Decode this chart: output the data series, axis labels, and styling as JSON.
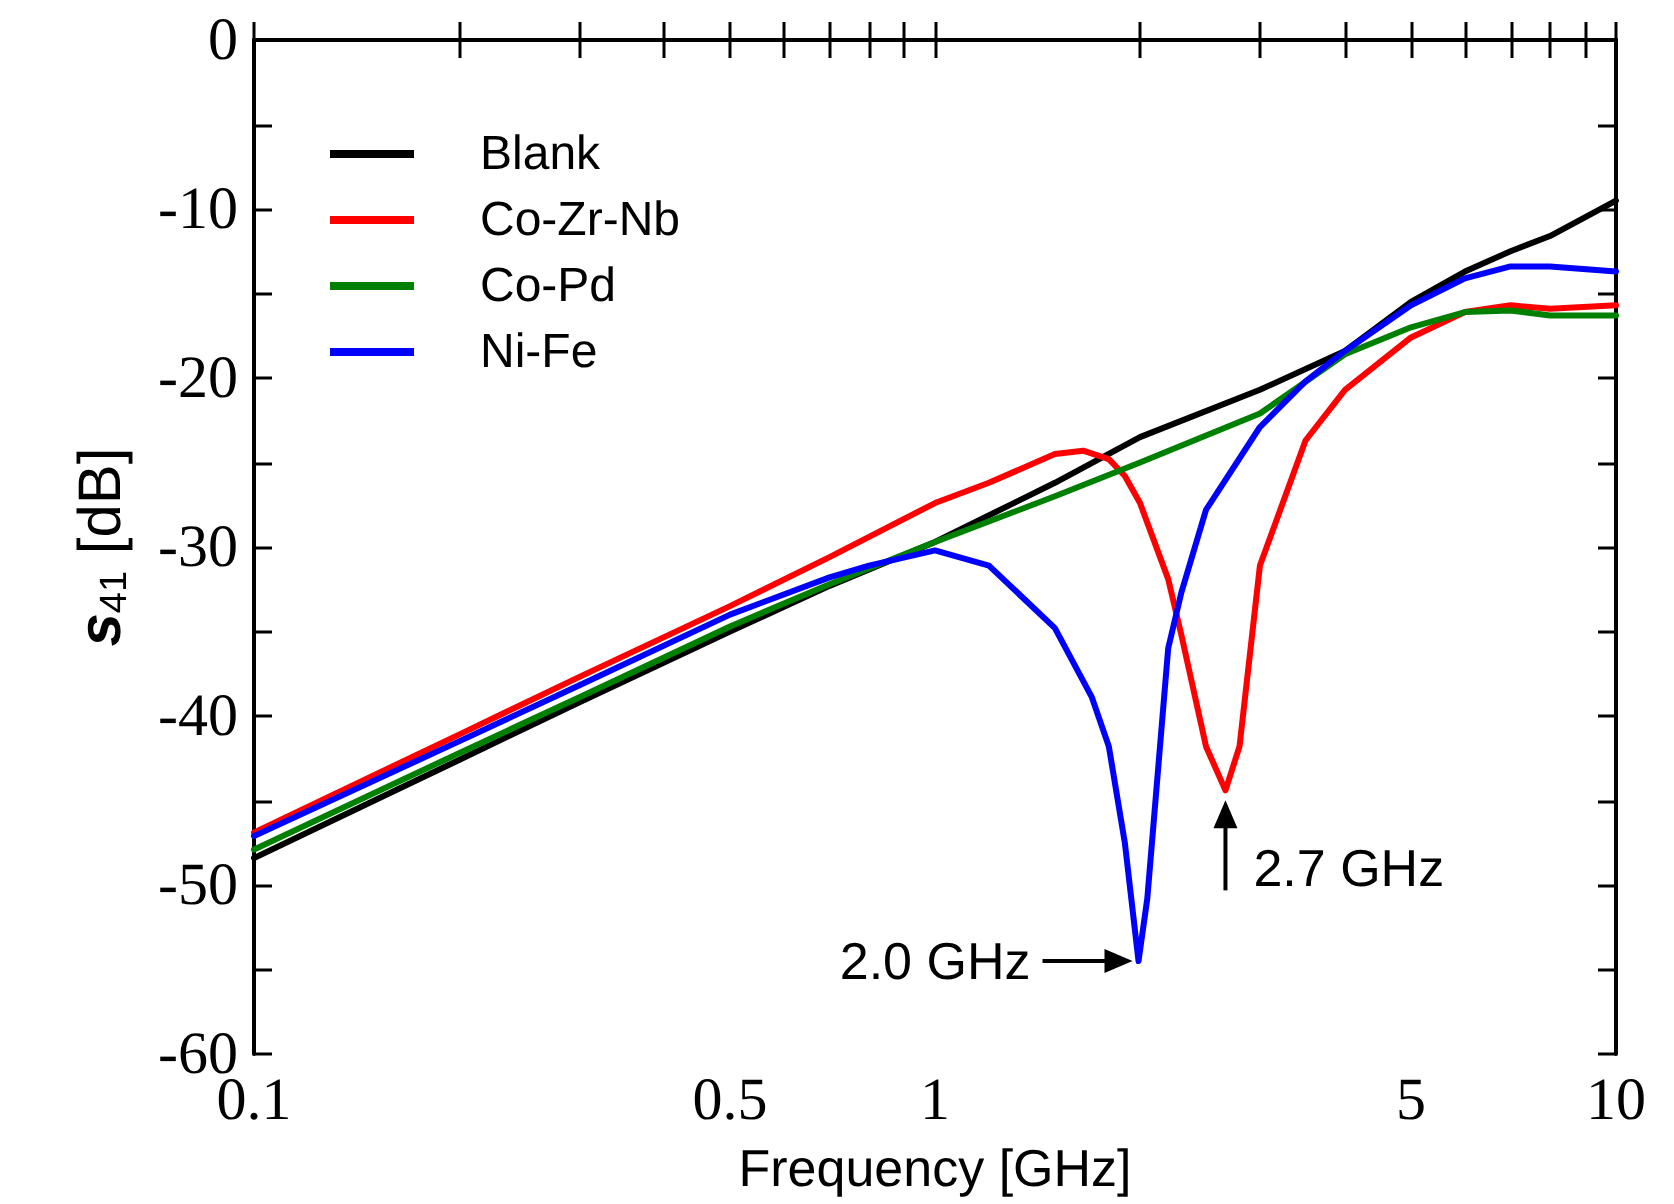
{
  "chart_data": {
    "type": "line",
    "xlabel": "Frequency [GHz]",
    "ylabel": "s$_{41}$ [dB]",
    "log": "x",
    "xlim": [
      0.1,
      10
    ],
    "ylim": [
      -60,
      0
    ],
    "xticks": [
      0.1,
      {
        "value": 0.2,
        "label": null
      },
      {
        "value": 0.3,
        "label": null
      },
      {
        "value": 0.4,
        "label": null
      },
      0.5,
      {
        "value": 0.6,
        "label": null
      },
      {
        "value": 0.7,
        "label": null
      },
      {
        "value": 0.8,
        "label": null
      },
      {
        "value": 0.9,
        "label": null
      },
      1,
      {
        "value": 2,
        "label": null
      },
      {
        "value": 3,
        "label": null
      },
      {
        "value": 4,
        "label": null
      },
      5,
      {
        "value": 6,
        "label": null
      },
      {
        "value": 7,
        "label": null
      },
      {
        "value": 8,
        "label": null
      },
      {
        "value": 9,
        "label": null
      },
      10
    ],
    "yticks": [
      -60,
      {
        "value": -55,
        "label": null
      },
      -50,
      {
        "value": -45,
        "label": null
      },
      -40,
      {
        "value": -35,
        "label": null
      },
      -30,
      {
        "value": -25,
        "label": null
      },
      -20,
      {
        "value": -15,
        "label": null
      },
      -10,
      {
        "value": -5,
        "label": null
      },
      0
    ],
    "grid": false,
    "legend": "top left",
    "marker": "none",
    "line_style": "solid",
    "series": [
      {
        "name": "Blank",
        "color": "#000000",
        "x": [
          0.1,
          0.2,
          0.3,
          0.5,
          0.7,
          1,
          1.5,
          2,
          3,
          4,
          5,
          6,
          7,
          8,
          10
        ],
        "values": [
          -48.4,
          -42.6,
          -39.2,
          -35.0,
          -32.3,
          -29.7,
          -26.2,
          -23.5,
          -20.7,
          -18.4,
          -15.5,
          -13.7,
          -12.5,
          -11.6,
          -9.5
        ]
      },
      {
        "name": "Co-Zr-Nb",
        "color": "#ff0000",
        "x": [
          0.1,
          0.2,
          0.3,
          0.5,
          0.7,
          1,
          1.2,
          1.5,
          1.65,
          1.8,
          1.9,
          2,
          2.2,
          2.3,
          2.5,
          2.67,
          2.8,
          3,
          3.5,
          4,
          5,
          6,
          7,
          8,
          10
        ],
        "values": [
          -46.9,
          -41.1,
          -37.7,
          -33.5,
          -30.6,
          -27.4,
          -26.2,
          -24.5,
          -24.3,
          -24.8,
          -25.8,
          -27.4,
          -31.9,
          -35.2,
          -41.8,
          -44.4,
          -41.8,
          -31.1,
          -23.7,
          -20.7,
          -17.6,
          -16.1,
          -15.7,
          -15.9,
          -15.7
        ]
      },
      {
        "name": "Co-Pd",
        "color": "#008000",
        "x": [
          0.1,
          0.2,
          0.3,
          0.5,
          0.7,
          1,
          1.5,
          2,
          3,
          4,
          5,
          6,
          7,
          8,
          10
        ],
        "values": [
          -47.9,
          -42.2,
          -38.9,
          -34.7,
          -32.2,
          -29.7,
          -27.0,
          -25.0,
          -22.1,
          -18.6,
          -17.0,
          -16.1,
          -16.0,
          -16.3,
          -16.3
        ]
      },
      {
        "name": "Ni-Fe",
        "color": "#0000ff",
        "x": [
          0.1,
          0.2,
          0.3,
          0.5,
          0.7,
          0.8,
          1,
          1.2,
          1.5,
          1.7,
          1.8,
          1.9,
          1.99,
          2.05,
          2.2,
          2.3,
          2.5,
          3,
          3.5,
          4,
          5,
          6,
          7,
          8,
          10
        ],
        "values": [
          -47.1,
          -41.5,
          -38.2,
          -34.0,
          -31.8,
          -31.1,
          -30.2,
          -31.1,
          -34.8,
          -38.9,
          -41.8,
          -47.5,
          -54.5,
          -50.8,
          -36.0,
          -32.7,
          -27.8,
          -22.9,
          -20.2,
          -18.4,
          -15.7,
          -14.1,
          -13.4,
          -13.4,
          -13.7
        ]
      }
    ],
    "annotations": [
      {
        "text": "2.0 GHz",
        "x": 1.99,
        "y": -54.5
      },
      {
        "text": "2.7 GHz",
        "x": 2.67,
        "y": -44.4
      }
    ]
  }
}
